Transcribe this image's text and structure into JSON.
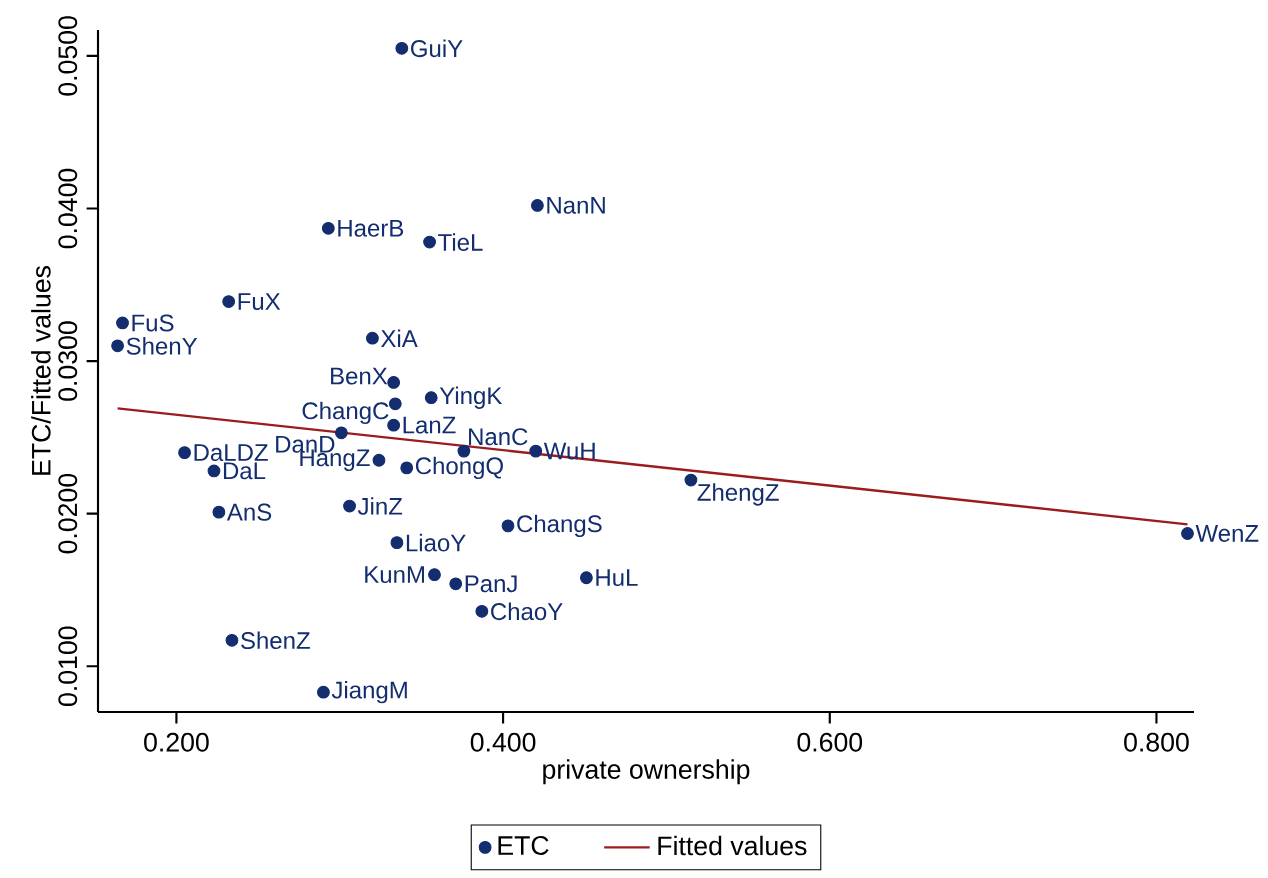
{
  "chart_data": {
    "type": "scatter",
    "xlabel": "private ownership",
    "ylabel": "ETC/Fitted values",
    "xlim": [
      0.152,
      0.823
    ],
    "ylim": [
      0.007,
      0.0517
    ],
    "xticks": [
      {
        "value": 0.2,
        "label": "0.200"
      },
      {
        "value": 0.4,
        "label": "0.400"
      },
      {
        "value": 0.6,
        "label": "0.600"
      },
      {
        "value": 0.8,
        "label": "0.800"
      }
    ],
    "yticks": [
      {
        "value": 0.01,
        "label": "0.0100"
      },
      {
        "value": 0.02,
        "label": "0.0200"
      },
      {
        "value": 0.03,
        "label": "0.0300"
      },
      {
        "value": 0.04,
        "label": "0.0400"
      },
      {
        "value": 0.05,
        "label": "0.0500"
      }
    ],
    "legend": "bottom",
    "series": [
      {
        "name": "ETC",
        "type": "scatter",
        "marker": "circle",
        "color": "#132d6e",
        "x": [
          0.338,
          0.293,
          0.355,
          0.421,
          0.232,
          0.167,
          0.164,
          0.205,
          0.223,
          0.226,
          0.234,
          0.32,
          0.333,
          0.334,
          0.356,
          0.333,
          0.301,
          0.376,
          0.42,
          0.324,
          0.341,
          0.515,
          0.306,
          0.403,
          0.335,
          0.358,
          0.371,
          0.451,
          0.387,
          0.29,
          0.819
        ],
        "values": [
          0.0505,
          0.0387,
          0.0378,
          0.0402,
          0.0339,
          0.0325,
          0.031,
          0.024,
          0.0228,
          0.0201,
          0.0117,
          0.0315,
          0.0286,
          0.0272,
          0.0276,
          0.0258,
          0.0253,
          0.0241,
          0.0241,
          0.0235,
          0.023,
          0.0222,
          0.0205,
          0.0192,
          0.0181,
          0.016,
          0.0154,
          0.0158,
          0.0136,
          0.0083,
          0.0187
        ]
      },
      {
        "name": "Fitted values",
        "type": "line",
        "marker": "none",
        "color": "#9b1b1e",
        "x": [
          0.164,
          0.819
        ],
        "values": [
          0.0269,
          0.0193
        ]
      }
    ],
    "annotations": [
      {
        "text": "GuiY",
        "x": 0.338,
        "y": 0.0505
      },
      {
        "text": "HaerB",
        "x": 0.293,
        "y": 0.0387
      },
      {
        "text": "TieL",
        "x": 0.355,
        "y": 0.0378
      },
      {
        "text": "NanN",
        "x": 0.421,
        "y": 0.0402
      },
      {
        "text": "FuX",
        "x": 0.232,
        "y": 0.0339
      },
      {
        "text": "FuS",
        "x": 0.167,
        "y": 0.0325
      },
      {
        "text": "ShenY",
        "x": 0.164,
        "y": 0.031
      },
      {
        "text": "DaLDZ",
        "x": 0.205,
        "y": 0.024
      },
      {
        "text": "DaL",
        "x": 0.223,
        "y": 0.0228
      },
      {
        "text": "AnS",
        "x": 0.226,
        "y": 0.0201
      },
      {
        "text": "ShenZ",
        "x": 0.234,
        "y": 0.0117
      },
      {
        "text": "XiA",
        "x": 0.32,
        "y": 0.0315
      },
      {
        "text": "BenX",
        "x": 0.333,
        "y": 0.0286
      },
      {
        "text": "ChangC",
        "x": 0.334,
        "y": 0.0272
      },
      {
        "text": "YingK",
        "x": 0.356,
        "y": 0.0276
      },
      {
        "text": "LanZ",
        "x": 0.333,
        "y": 0.0258
      },
      {
        "text": "DanD",
        "x": 0.301,
        "y": 0.0253
      },
      {
        "text": "NanC",
        "x": 0.376,
        "y": 0.0241
      },
      {
        "text": "WuH",
        "x": 0.42,
        "y": 0.0241
      },
      {
        "text": "HangZ",
        "x": 0.324,
        "y": 0.0235
      },
      {
        "text": "ChongQ",
        "x": 0.341,
        "y": 0.023
      },
      {
        "text": "ZhengZ",
        "x": 0.515,
        "y": 0.0222
      },
      {
        "text": "JinZ",
        "x": 0.306,
        "y": 0.0205
      },
      {
        "text": "ChangS",
        "x": 0.403,
        "y": 0.0192
      },
      {
        "text": "LiaoY",
        "x": 0.335,
        "y": 0.0181
      },
      {
        "text": "KunM",
        "x": 0.358,
        "y": 0.016
      },
      {
        "text": "PanJ",
        "x": 0.371,
        "y": 0.0154
      },
      {
        "text": "HuL",
        "x": 0.451,
        "y": 0.0158
      },
      {
        "text": "ChaoY",
        "x": 0.387,
        "y": 0.0136
      },
      {
        "text": "JiangM",
        "x": 0.29,
        "y": 0.0083
      },
      {
        "text": "WenZ",
        "x": 0.819,
        "y": 0.0187
      }
    ]
  }
}
